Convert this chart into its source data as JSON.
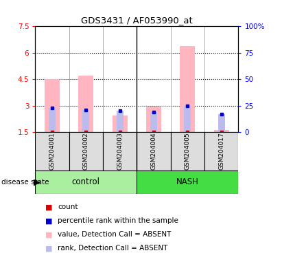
{
  "title": "GDS3431 / AF053990_at",
  "samples": [
    "GSM204001",
    "GSM204002",
    "GSM204003",
    "GSM204004",
    "GSM204005",
    "GSM204017"
  ],
  "groups": [
    "control",
    "control",
    "control",
    "NASH",
    "NASH",
    "NASH"
  ],
  "group_labels": [
    "control",
    "NASH"
  ],
  "control_color": "#AAEEA0",
  "nash_color": "#44DD44",
  "ylim_left": [
    1.5,
    7.5
  ],
  "ylim_right": [
    0,
    100
  ],
  "yticks_left": [
    1.5,
    3.0,
    4.5,
    6.0,
    7.5
  ],
  "ytick_labels_left": [
    "1.5",
    "3",
    "4.5",
    "6",
    "7.5"
  ],
  "yticks_right": [
    0,
    25,
    50,
    75,
    100
  ],
  "ytick_labels_right": [
    "0",
    "25",
    "50",
    "75",
    "100%"
  ],
  "value_absent": [
    4.52,
    4.72,
    2.42,
    2.95,
    6.38,
    1.62
  ],
  "rank_absent": [
    2.88,
    2.75,
    2.72,
    2.62,
    2.98,
    2.5
  ],
  "bar_bottom": 1.5,
  "pink_color": "#FFB6C1",
  "lavender_color": "#BBBBEE",
  "red_color": "#DD0000",
  "blue_color": "#0000CC",
  "legend_items": [
    {
      "label": "count",
      "color": "#DD0000"
    },
    {
      "label": "percentile rank within the sample",
      "color": "#0000CC"
    },
    {
      "label": "value, Detection Call = ABSENT",
      "color": "#FFB6C1"
    },
    {
      "label": "rank, Detection Call = ABSENT",
      "color": "#BBBBEE"
    }
  ],
  "sample_box_color": "#DDDDDD",
  "pink_bar_width": 0.45,
  "lavender_bar_width": 0.2
}
